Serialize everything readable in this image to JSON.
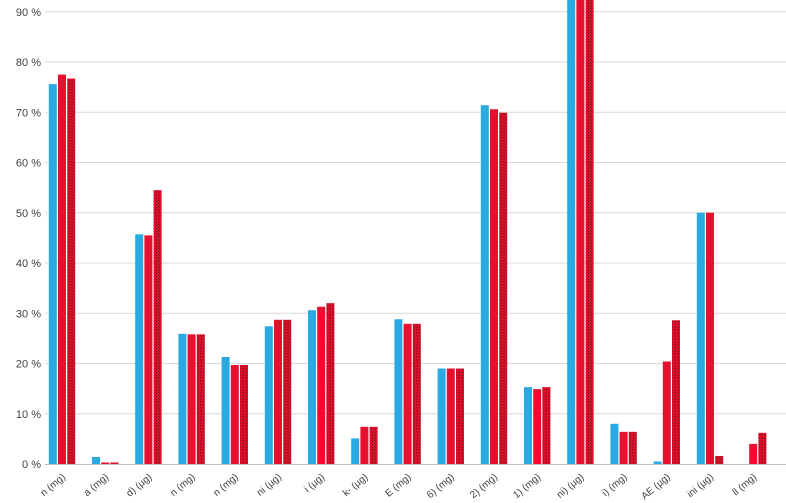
{
  "chart_data": {
    "type": "bar",
    "title": "",
    "xlabel": "",
    "ylabel": "",
    "ylim": [
      0,
      90
    ],
    "grid": true,
    "legend": "none",
    "y_ticks": [
      "0 %",
      "10 %",
      "20 %",
      "30 %",
      "40 %",
      "50 %",
      "60 %",
      "70 %",
      "80 %",
      "90 %"
    ],
    "categories": [
      "n (mg)",
      "a (mg)",
      "d) (µg)",
      "n (mg)",
      "n (mg)",
      "ni (µg)",
      "i (µg)",
      "k- (µg)",
      "E (mg)",
      "6) (mg)",
      "2) (mg)",
      "1) (mg)",
      "ni) (µg)",
      "i) (mg)",
      "AE (µg)",
      "ini (µg)",
      "ll (mg)"
    ],
    "series": [
      {
        "color": "#29aae1",
        "pattern": "solid",
        "values": [
          75.6,
          1.4,
          45.7,
          25.9,
          21.3,
          27.4,
          30.6,
          5.1,
          28.8,
          19.0,
          71.4,
          15.3,
          93,
          8.0,
          0.5,
          50.0,
          null
        ]
      },
      {
        "color": "#e8102e",
        "pattern": "solid",
        "values": [
          77.5,
          0.3,
          45.5,
          25.8,
          19.7,
          28.7,
          31.3,
          7.4,
          27.9,
          19.0,
          70.6,
          14.9,
          93,
          6.4,
          20.4,
          50.0,
          4.0
        ]
      },
      {
        "color": "#c0102a",
        "pattern": "hatched",
        "values": [
          76.7,
          0.3,
          54.5,
          25.8,
          19.7,
          28.7,
          32.0,
          7.4,
          27.9,
          19.0,
          69.9,
          15.3,
          93,
          6.4,
          28.6,
          1.6,
          6.2
        ]
      }
    ]
  }
}
